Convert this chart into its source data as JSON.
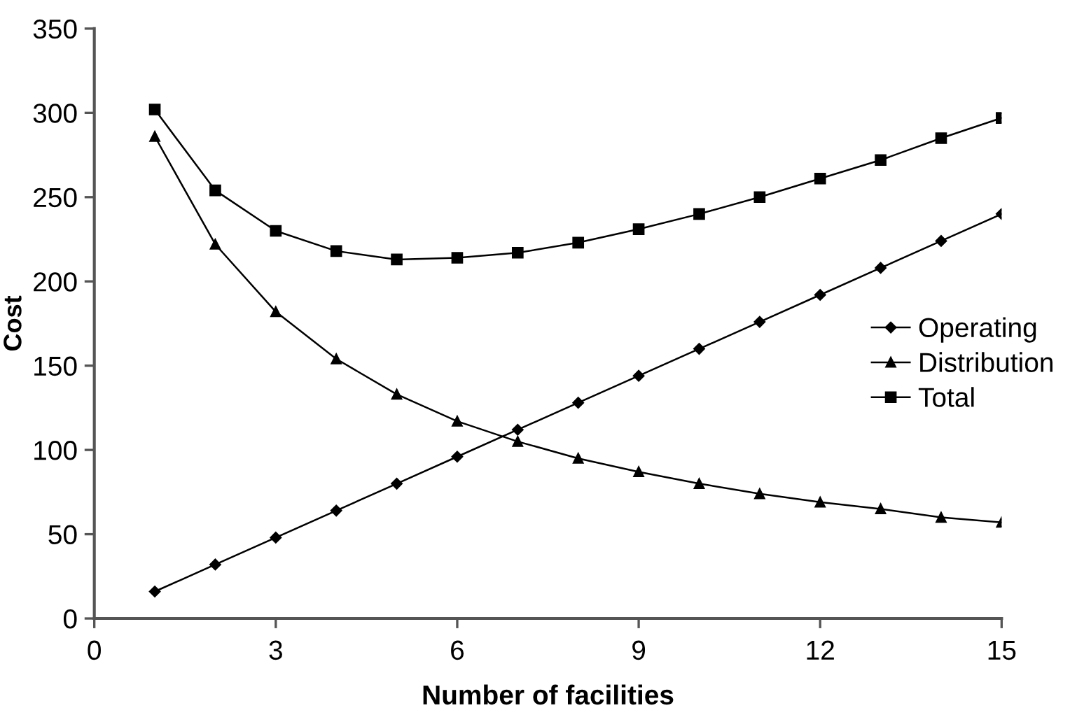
{
  "chart_data": {
    "type": "line",
    "xlabel": "Number of facilities",
    "ylabel": "Cost",
    "x": [
      1,
      2,
      3,
      4,
      5,
      6,
      7,
      8,
      9,
      10,
      11,
      12,
      13,
      14,
      15
    ],
    "series": [
      {
        "name": "Operating",
        "color": "#000000",
        "marker": "diamond",
        "values": [
          16,
          32,
          48,
          64,
          80,
          96,
          112,
          128,
          144,
          160,
          176,
          192,
          208,
          224,
          240
        ]
      },
      {
        "name": "Distribution",
        "color": "#000000",
        "marker": "triangle",
        "values": [
          286,
          222,
          182,
          154,
          133,
          117,
          105,
          95,
          87,
          80,
          74,
          69,
          65,
          60,
          57
        ]
      },
      {
        "name": "Total",
        "color": "#000000",
        "marker": "square",
        "values": [
          302,
          254,
          230,
          218,
          213,
          214,
          217,
          223,
          231,
          240,
          250,
          261,
          272,
          285,
          297
        ]
      }
    ],
    "xlim": [
      0,
      15
    ],
    "xticks": [
      0,
      3,
      6,
      9,
      12,
      15
    ],
    "ylim": [
      0,
      350
    ],
    "yticks": [
      0,
      50,
      100,
      150,
      200,
      250,
      300,
      350
    ],
    "grid": false,
    "legend": "right",
    "line_style": "solid"
  }
}
